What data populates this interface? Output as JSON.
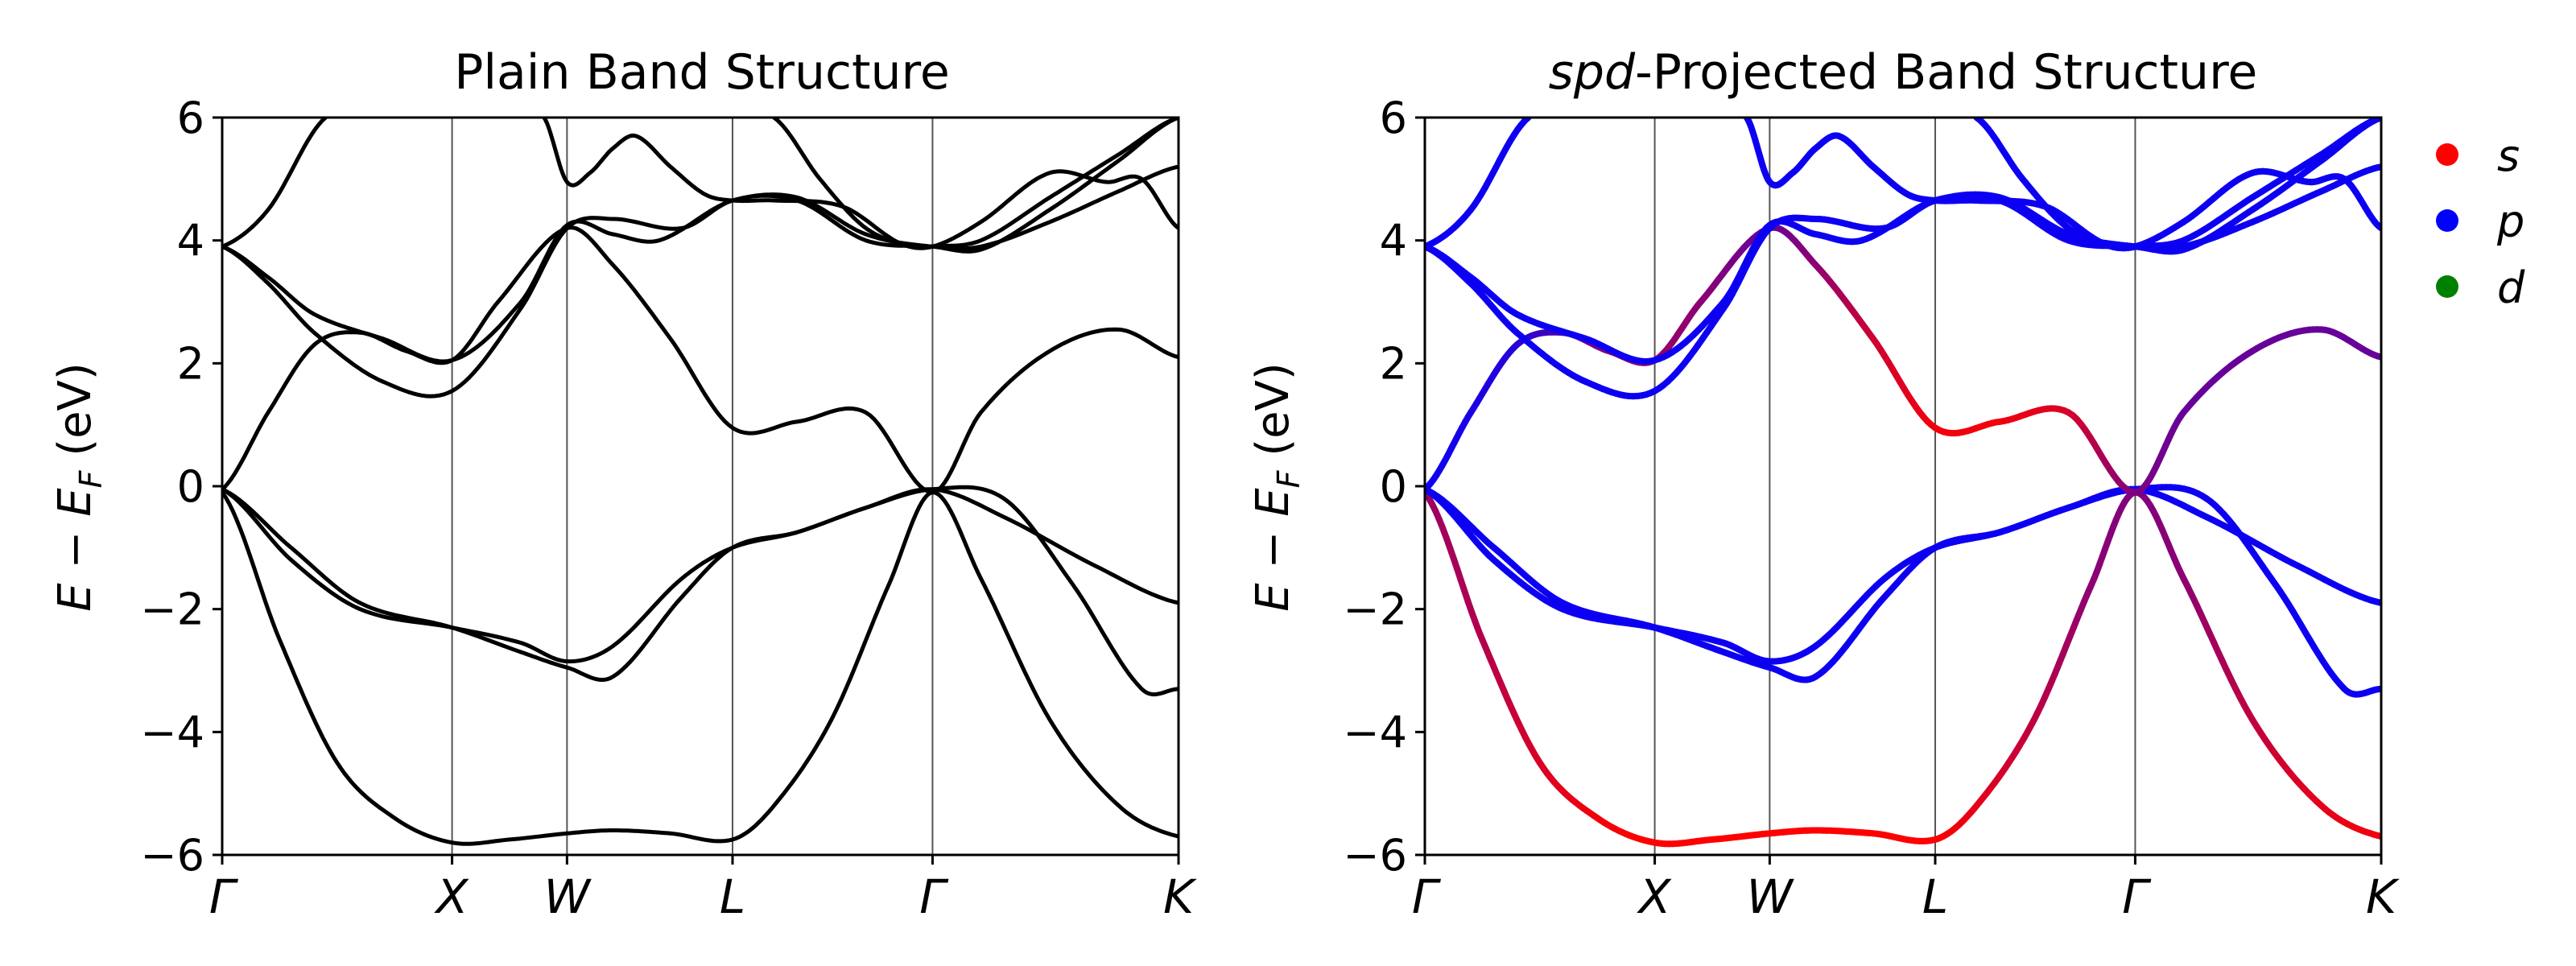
{
  "chart_data": [
    {
      "type": "line",
      "title": "Plain Band Structure",
      "ylabel_parts": [
        "E − E",
        "F",
        " (eV)"
      ],
      "ylim": [
        -6,
        6
      ],
      "yticks": [
        6,
        4,
        2,
        0,
        -2,
        -4,
        -6
      ],
      "ytick_labels": [
        "6",
        "4",
        "2",
        "0",
        "−2",
        "−4",
        "−6"
      ],
      "kpath": {
        "labels": [
          "Γ",
          "X",
          "W",
          "L",
          "Γ",
          "K"
        ],
        "positions": [
          0,
          1,
          1.5,
          2.22,
          3.09,
          4.16
        ]
      },
      "colored": false,
      "series": [
        {
          "name": "band 1",
          "x": [
            0,
            0.25,
            0.5,
            0.75,
            1,
            1.25,
            1.5,
            1.7,
            1.95,
            2.22,
            2.4,
            2.65,
            2.9,
            3.09,
            3.3,
            3.6,
            3.9,
            4.16
          ],
          "values": [
            -0.1,
            -2.5,
            -4.5,
            -5.4,
            -5.8,
            -5.75,
            -5.65,
            -5.6,
            -5.65,
            -5.75,
            -5.2,
            -3.8,
            -1.6,
            -0.1,
            -1.5,
            -3.8,
            -5.2,
            -5.7
          ],
          "s_weight": [
            0.6,
            0.7,
            0.85,
            0.95,
            1,
            1,
            1,
            1,
            1,
            1,
            0.9,
            0.75,
            0.55,
            0.5,
            0.55,
            0.75,
            0.9,
            0.95
          ]
        },
        {
          "name": "band 2",
          "x": [
            0,
            0.3,
            0.6,
            1,
            1.3,
            1.5,
            1.7,
            2,
            2.22,
            2.5,
            2.8,
            3.09,
            3.4,
            3.8,
            4.16
          ],
          "values": [
            -0.05,
            -1.0,
            -1.9,
            -2.3,
            -2.7,
            -2.95,
            -3.1,
            -1.8,
            -1.0,
            -0.75,
            -0.35,
            -0.05,
            -0.5,
            -1.3,
            -1.9
          ],
          "s_weight": [
            0.05,
            0.05,
            0.05,
            0.05,
            0.05,
            0.05,
            0.05,
            0.05,
            0.05,
            0.05,
            0.05,
            0.05,
            0.05,
            0.05,
            0.05
          ]
        },
        {
          "name": "band 3",
          "x": [
            0,
            0.3,
            0.6,
            1,
            1.3,
            1.5,
            1.7,
            2,
            2.22,
            2.5,
            2.8,
            3.09,
            3.4,
            3.7,
            4,
            4.16
          ],
          "values": [
            -0.05,
            -1.2,
            -2.0,
            -2.3,
            -2.55,
            -2.85,
            -2.6,
            -1.5,
            -1.0,
            -0.75,
            -0.35,
            -0.05,
            -0.2,
            -1.6,
            -3.3,
            -3.3
          ],
          "s_weight": [
            0.05,
            0.05,
            0.05,
            0.05,
            0.05,
            0.05,
            0.05,
            0.05,
            0.05,
            0.05,
            0.05,
            0.05,
            0.05,
            0.05,
            0.05,
            0.05
          ]
        },
        {
          "name": "band 4",
          "x": [
            0,
            0.2,
            0.4,
            0.6,
            0.8,
            1,
            1.2,
            1.5,
            1.7,
            1.95,
            2.22,
            2.5,
            2.8,
            3.09,
            3.3,
            3.6,
            3.9,
            4.16
          ],
          "values": [
            -0.05,
            1.2,
            2.3,
            2.5,
            2.2,
            2.05,
            3.0,
            4.2,
            3.6,
            2.4,
            0.95,
            1.05,
            1.2,
            -0.1,
            1.2,
            2.2,
            2.55,
            2.1
          ],
          "s_weight": [
            0.05,
            0.1,
            0.15,
            0.3,
            0.5,
            0.6,
            0.55,
            0.4,
            0.55,
            0.8,
            0.95,
            0.95,
            0.85,
            0.5,
            0.4,
            0.4,
            0.4,
            0.4
          ]
        },
        {
          "name": "band 5",
          "x": [
            0,
            0.2,
            0.4,
            0.7,
            1,
            1.3,
            1.5,
            1.7,
            2,
            2.22,
            2.5,
            2.8,
            3.09,
            3.3,
            3.6,
            3.9,
            4.16
          ],
          "values": [
            3.9,
            3.3,
            2.5,
            1.7,
            1.55,
            2.9,
            4.2,
            4.35,
            4.2,
            4.65,
            4.7,
            4.1,
            3.9,
            3.9,
            4.3,
            4.8,
            5.2
          ],
          "s_weight": [
            0.05,
            0.05,
            0.05,
            0.05,
            0.05,
            0.05,
            0.05,
            0.05,
            0.05,
            0.05,
            0.05,
            0.05,
            0.05,
            0.05,
            0.05,
            0.05,
            0.05
          ]
        },
        {
          "name": "band 6",
          "x": [
            0,
            0.2,
            0.4,
            0.7,
            1,
            1.3,
            1.5,
            1.7,
            1.9,
            2.22,
            2.5,
            2.8,
            3.09,
            3.3,
            3.6,
            3.9,
            4.16
          ],
          "values": [
            3.9,
            3.4,
            2.8,
            2.4,
            2.05,
            3.0,
            4.25,
            4.1,
            4.0,
            4.65,
            4.65,
            4.0,
            3.9,
            3.85,
            4.5,
            5.3,
            6.0
          ],
          "s_weight": [
            0.05,
            0.05,
            0.05,
            0.05,
            0.05,
            0.05,
            0.05,
            0.05,
            0.05,
            0.05,
            0.05,
            0.05,
            0.05,
            0.05,
            0.05,
            0.05,
            0.05
          ]
        },
        {
          "name": "band 7",
          "x": [
            0,
            0.2,
            0.45
          ],
          "values": [
            3.9,
            4.5,
            6.0
          ],
          "s_weight": [
            0.05,
            0.05,
            0.05
          ]
        },
        {
          "name": "band 8",
          "x": [
            1.4,
            1.5,
            1.6,
            1.7,
            1.8,
            1.95,
            2.1,
            2.22,
            2.4,
            2.7,
            2.95,
            3.09,
            3.3,
            3.6,
            3.85,
            4.0,
            4.16
          ],
          "values": [
            6.0,
            4.95,
            5.1,
            5.5,
            5.7,
            5.2,
            4.75,
            4.65,
            4.65,
            4.55,
            3.95,
            3.9,
            4.3,
            5.1,
            4.95,
            5.0,
            4.2
          ],
          "s_weight": [
            0.05,
            0.05,
            0.05,
            0.05,
            0.05,
            0.05,
            0.05,
            0.05,
            0.05,
            0.05,
            0.05,
            0.05,
            0.05,
            0.05,
            0.05,
            0.05,
            0.05
          ]
        },
        {
          "name": "band 9",
          "x": [
            2.4,
            2.6,
            2.8,
            3.0,
            3.09,
            3.3,
            3.6,
            3.9,
            4.16
          ],
          "values": [
            6.0,
            5.0,
            4.2,
            3.9,
            3.9,
            4.0,
            4.7,
            5.4,
            6.0
          ],
          "s_weight": [
            0.05,
            0.05,
            0.05,
            0.05,
            0.05,
            0.05,
            0.05,
            0.05,
            0.05
          ]
        }
      ]
    },
    {
      "type": "line",
      "title_italic": "spd",
      "title_rest": "-Projected Band Structure",
      "ylabel_parts": [
        "E − E",
        "F",
        " (eV)"
      ],
      "ylim": [
        -6,
        6
      ],
      "yticks": [
        6,
        4,
        2,
        0,
        -2,
        -4,
        -6
      ],
      "ytick_labels": [
        "6",
        "4",
        "2",
        "0",
        "−2",
        "−4",
        "−6"
      ],
      "kpath": {
        "labels": [
          "Γ",
          "X",
          "W",
          "L",
          "Γ",
          "K"
        ],
        "positions": [
          0,
          1,
          1.5,
          2.22,
          3.09,
          4.16
        ]
      },
      "colored": true,
      "legend": {
        "placement": "outside-right",
        "entries": [
          {
            "label": "s",
            "color": "#ff0000"
          },
          {
            "label": "p",
            "color": "#0000ff"
          },
          {
            "label": "d",
            "color": "#008000"
          }
        ]
      },
      "series": "same as panel 1, colored by s/p projection weight"
    }
  ]
}
